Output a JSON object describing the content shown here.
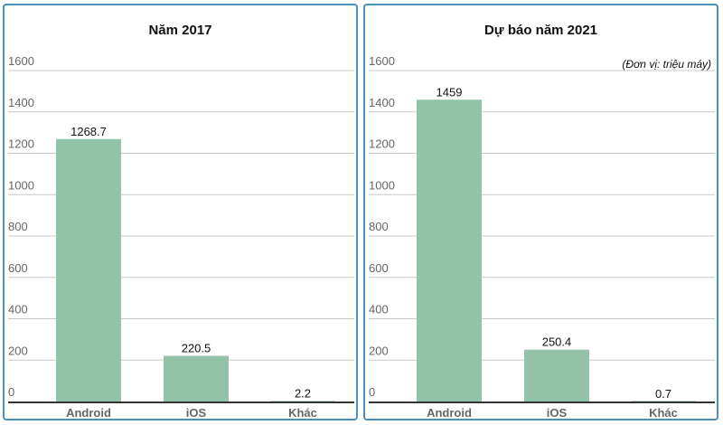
{
  "chart_data": [
    {
      "type": "bar",
      "title": "Năm 2017",
      "categories": [
        "Android",
        "iOS",
        "Khác"
      ],
      "values": [
        1268.7,
        220.5,
        2.2
      ],
      "value_labels": [
        "1268.7",
        "220.5",
        "2.2"
      ],
      "yticks": [
        "0",
        "200",
        "400",
        "600",
        "800",
        "1000",
        "1200",
        "1400",
        "1600"
      ],
      "ylim": [
        0,
        1600
      ],
      "bar_color": "#92c3a8",
      "grid": true
    },
    {
      "type": "bar",
      "title": "Dự báo năm 2021",
      "unit_note": "(Đơn vị: triệu máy)",
      "categories": [
        "Android",
        "iOS",
        "Khác"
      ],
      "values": [
        1459,
        250.4,
        0.7
      ],
      "value_labels": [
        "1459",
        "250.4",
        "0.7"
      ],
      "yticks": [
        "0",
        "200",
        "400",
        "600",
        "800",
        "1000",
        "1200",
        "1400",
        "1600"
      ],
      "ylim": [
        0,
        1600
      ],
      "bar_color": "#92c3a8",
      "grid": true
    }
  ]
}
